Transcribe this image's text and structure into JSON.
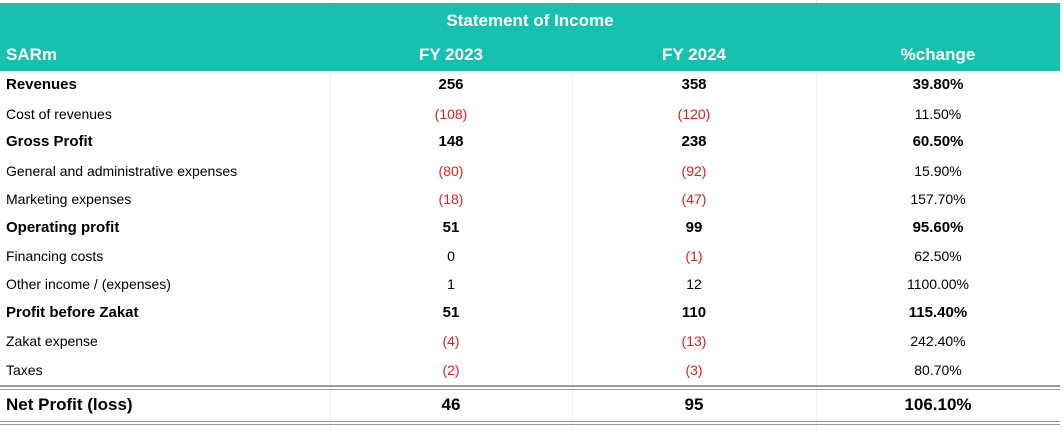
{
  "table": {
    "title": "Statement of Income",
    "headers": [
      "SARm",
      "FY 2023",
      "FY 2024",
      "%change"
    ],
    "rows": [
      {
        "label": "Revenues",
        "fy2023": "256",
        "fy2024": "358",
        "change": "39.80%",
        "bold": true
      },
      {
        "label": "Cost of revenues",
        "fy2023": "(108)",
        "fy2024": "(120)",
        "change": "11.50%",
        "bold": false
      },
      {
        "label": "Gross Profit",
        "fy2023": "148",
        "fy2024": "238",
        "change": "60.50%",
        "bold": true
      },
      {
        "label": "General and administrative expenses",
        "fy2023": "(80)",
        "fy2024": "(92)",
        "change": "15.90%",
        "bold": false
      },
      {
        "label": "Marketing expenses",
        "fy2023": "(18)",
        "fy2024": "(47)",
        "change": "157.70%",
        "bold": false
      },
      {
        "label": "Operating profit",
        "fy2023": "51",
        "fy2024": "99",
        "change": "95.60%",
        "bold": true
      },
      {
        "label": "Financing costs",
        "fy2023": "0",
        "fy2024": "(1)",
        "change": "62.50%",
        "bold": false
      },
      {
        "label": "Other income / (expenses)",
        "fy2023": "1",
        "fy2024": "12",
        "change": "1100.00%",
        "bold": false
      },
      {
        "label": "Profit before Zakat",
        "fy2023": "51",
        "fy2024": "110",
        "change": "115.40%",
        "bold": true
      },
      {
        "label": "Zakat expense",
        "fy2023": "(4)",
        "fy2024": "(13)",
        "change": "242.40%",
        "bold": false
      },
      {
        "label": "Taxes",
        "fy2023": "(2)",
        "fy2024": "(3)",
        "change": "80.70%",
        "bold": false
      }
    ],
    "total": {
      "label": "Net Profit (loss)",
      "fy2023": "46",
      "fy2024": "95",
      "change": "106.10%"
    }
  },
  "colors": {
    "header_bg": "#17c1b0",
    "negative": "#e0201c"
  }
}
